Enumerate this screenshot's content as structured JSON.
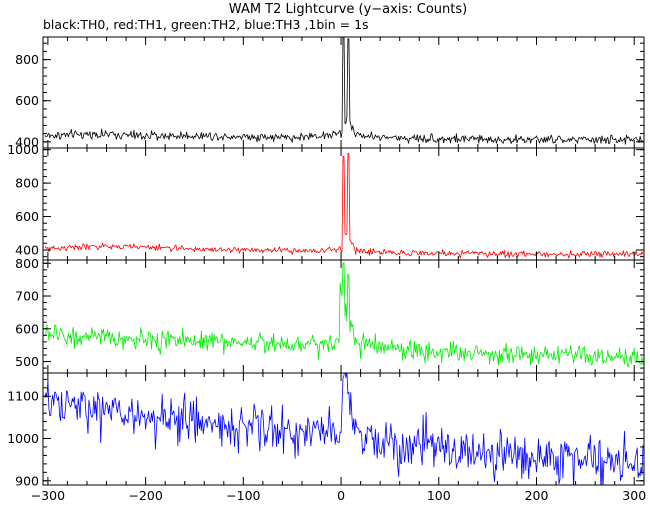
{
  "chart_data": {
    "type": "line",
    "title": "WAM T2 Lightcurve (y−axis: Counts)",
    "subtitle": "black:TH0, red:TH1, green:TH2, blue:TH3 ,1bin = 1s",
    "xlabel": "",
    "ylabel": "",
    "xlim": [
      -305,
      310
    ],
    "x_ticks": [
      "−300",
      "−200",
      "−100",
      "0",
      "100",
      "200",
      "300"
    ],
    "x_tick_values": [
      -300,
      -200,
      -100,
      0,
      100,
      200,
      300
    ],
    "bin_seconds": 1,
    "grid": false,
    "legend": "none",
    "panels": [
      {
        "name": "TH0",
        "color": "#000000",
        "ylim": [
          370,
          910
        ],
        "y_ticks": [
          "400",
          "600",
          "800"
        ],
        "y_tick_values": [
          400,
          600,
          800
        ],
        "baseline": 425,
        "noise": 15,
        "peak_pre": 0,
        "peak_main": 920,
        "peak_second": 900,
        "mean_x": [
          -300,
          -250,
          -200,
          -150,
          -100,
          -50,
          0,
          50,
          100,
          150,
          200,
          250,
          305
        ],
        "mean_y": [
          430,
          438,
          428,
          430,
          427,
          420,
          440,
          420,
          415,
          412,
          410,
          410,
          410
        ]
      },
      {
        "name": "TH1",
        "color": "#ff0000",
        "ylim": [
          340,
          1010
        ],
        "y_ticks": [
          "400",
          "600",
          "800",
          "1000"
        ],
        "y_tick_values": [
          400,
          600,
          800,
          1000
        ],
        "baseline": 405,
        "noise": 13,
        "peak_pre": 0,
        "peak_main": 960,
        "peak_second": 980,
        "mean_x": [
          -300,
          -250,
          -200,
          -150,
          -100,
          -50,
          0,
          50,
          100,
          150,
          200,
          250,
          305
        ],
        "mean_y": [
          410,
          420,
          418,
          405,
          400,
          395,
          400,
          385,
          380,
          378,
          375,
          375,
          375
        ]
      },
      {
        "name": "TH2",
        "color": "#00ee00",
        "ylim": [
          465,
          810
        ],
        "y_ticks": [
          "500",
          "600",
          "700",
          "800"
        ],
        "y_tick_values": [
          500,
          600,
          700,
          800
        ],
        "baseline": 575,
        "noise": 22,
        "peak_pre": 730,
        "peak_main": 800,
        "peak_second": 760,
        "mean_x": [
          -300,
          -250,
          -200,
          -150,
          -100,
          -50,
          0,
          50,
          100,
          150,
          200,
          250,
          305
        ],
        "mean_y": [
          585,
          570,
          565,
          565,
          560,
          555,
          560,
          540,
          530,
          525,
          520,
          515,
          505
        ]
      },
      {
        "name": "TH3",
        "color": "#0000ff",
        "ylim": [
          890,
          1155
        ],
        "y_ticks": [
          "900",
          "1000",
          "1100"
        ],
        "y_tick_values": [
          900,
          1000,
          1100
        ],
        "baseline": 1060,
        "noise": 38,
        "peak_pre": 0,
        "peak_main": 1145,
        "peak_second": 1110,
        "mean_x": [
          -300,
          -250,
          -200,
          -150,
          -100,
          -50,
          0,
          50,
          100,
          150,
          200,
          250,
          305
        ],
        "mean_y": [
          1080,
          1070,
          1050,
          1040,
          1030,
          1015,
          1010,
          990,
          975,
          965,
          955,
          950,
          945
        ]
      }
    ]
  }
}
